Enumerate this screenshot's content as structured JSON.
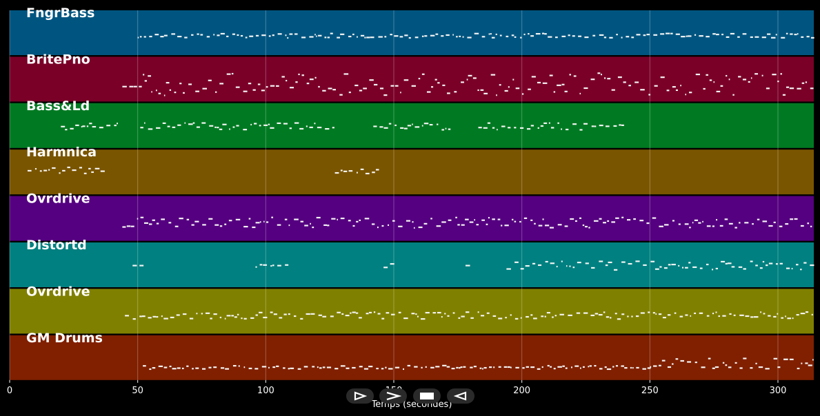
{
  "chart_data": {
    "type": "piano-roll",
    "xlabel": "Temps (secondes)",
    "xlim": [
      0,
      314
    ],
    "xticks": [
      0,
      50,
      100,
      150,
      200,
      250,
      300
    ],
    "grid": true,
    "tracks": [
      {
        "name": "FngrBass",
        "color": "#005580",
        "segments": [
          [
            50,
            314,
            0.55,
            0.05
          ]
        ]
      },
      {
        "name": "BritePno",
        "color": "#7a0028",
        "segments": [
          [
            44,
            52,
            0.65,
            0.0
          ],
          [
            52,
            314,
            0.6,
            0.25
          ]
        ]
      },
      {
        "name": "Bass&Ld",
        "color": "#007a22",
        "segments": [
          [
            20,
            42,
            0.5,
            0.08
          ],
          [
            51,
            126,
            0.5,
            0.08
          ],
          [
            142,
            172,
            0.5,
            0.08
          ],
          [
            183,
            239,
            0.5,
            0.08
          ]
        ]
      },
      {
        "name": "Harmnica",
        "color": "#7a5500",
        "segments": [
          [
            7,
            37,
            0.45,
            0.07
          ],
          [
            127,
            143,
            0.45,
            0.07
          ]
        ]
      },
      {
        "name": "Ovrdrive",
        "color": "#550080",
        "segments": [
          [
            44,
            314,
            0.58,
            0.12
          ]
        ]
      },
      {
        "name": "Distortd",
        "color": "#008080",
        "segments": [
          [
            48,
            51,
            0.5,
            0.0
          ],
          [
            96,
            108,
            0.5,
            0.05
          ],
          [
            146,
            150,
            0.5,
            0.05
          ],
          [
            178,
            180,
            0.5,
            0.0
          ],
          [
            194,
            314,
            0.5,
            0.1
          ]
        ]
      },
      {
        "name": "Ovrdrive",
        "color": "#808000",
        "segments": [
          [
            45,
            314,
            0.58,
            0.08
          ]
        ]
      },
      {
        "name": "GM Drums",
        "color": "#802000",
        "segments": [
          [
            52,
            250,
            0.7,
            0.04
          ],
          [
            250,
            314,
            0.62,
            0.12
          ]
        ]
      }
    ]
  },
  "controls": {
    "play": "play-button",
    "fast_forward": "fast-forward-button",
    "stop": "stop-button",
    "rewind": "rewind-button"
  }
}
